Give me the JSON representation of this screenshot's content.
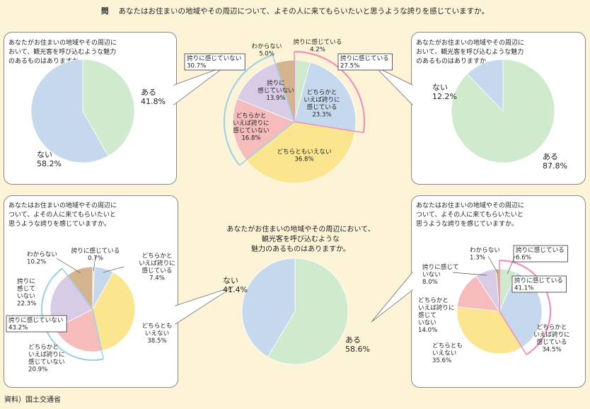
{
  "question": {
    "mark": "問",
    "text": "あなたはお住まいの地域やその周辺について、よその人に来てもらいたいと思うような誇りを感じていますか。"
  },
  "panels": {
    "top_left": {
      "text": "あなたがお住まいの地域やその周辺に\nおいて、観光客を呼び込むような魅力\nのあるものはありますか。"
    },
    "top_right": {
      "text": "あなたがお住まいの地域やその周辺に\nおいて、観光客を呼び込むような魅力\nのあるものはありますか。"
    },
    "bottom_left": {
      "text": "あなたはお住まいの地域やその周辺に\nついて、よその人に来てもらいたいと\n思うような誇りを感じていますか。"
    },
    "bottom_right": {
      "text": "あなたはお住まいの地域やその周辺に\nついて、よその人に来てもらいたいと\n思うような誇りを感じていますか。"
    },
    "bottom_center": {
      "text": "あなたがお住まいの地域やその周辺において、\n観光客を呼び込むような\n魅力のあるものはありますか。"
    }
  },
  "source": "資料）国土交通省",
  "colors": {
    "hokori": "#cfeacc",
    "dochira_kanjiru": "#c6d8ee",
    "dochira_mo": "#fbe58f",
    "dochira_kanjinai": "#f6bcbc",
    "kanjinai": "#d8cbe6",
    "wakaranai": "#d4b48e",
    "aru": "#cfeacc",
    "nai": "#c6d8ee",
    "pink_arc": "#ef8fba",
    "blue_arc": "#9fd3e6"
  },
  "chart_data": [
    {
      "type": "pie",
      "title": "あなたはお住まいの地域やその周辺について、よその人に来てもらいたいと思うような誇りを感じていますか。",
      "categories": [
        "誇りに感じている",
        "どちらかといえば誇りに感じている",
        "どちらともいえない",
        "どちらかといえば誇りに感じていない",
        "誇りに感じていない",
        "わからない"
      ],
      "values": [
        4.2,
        23.3,
        36.8,
        16.8,
        13.9,
        5.0
      ],
      "groups": [
        {
          "label": "誇りに感じている",
          "value": "27.5%"
        },
        {
          "label": "誇りに感じていない",
          "value": "30.7%"
        }
      ]
    },
    {
      "type": "pie",
      "title": "あなたがお住まいの地域やその周辺において、観光客を呼び込むような魅力のあるものはありますか。",
      "categories": [
        "ある",
        "ない"
      ],
      "values": [
        41.8,
        58.2
      ]
    },
    {
      "type": "pie",
      "title": "あなたがお住まいの地域やその周辺において、観光客を呼び込むような魅力のあるものはありますか。",
      "categories": [
        "ある",
        "ない"
      ],
      "values": [
        87.8,
        12.2
      ]
    },
    {
      "type": "pie",
      "title": "あなたはお住まいの地域やその周辺について、よその人に来てもらいたいと思うような誇りを感じていますか。",
      "categories": [
        "誇りに感じている",
        "どちらかといえば誇りに感じている",
        "どちらともいえない",
        "どちらかといえば誇りに感じていない",
        "誇りに感じていない",
        "わからない"
      ],
      "values": [
        0.7,
        7.4,
        38.5,
        20.9,
        22.3,
        10.2
      ],
      "groups": [
        {
          "label": "誇りに感じていない",
          "value": "43.2%"
        }
      ]
    },
    {
      "type": "pie",
      "title": "あなたがお住まいの地域やその周辺において、観光客を呼び込むような魅力のあるものはありますか。",
      "categories": [
        "ある",
        "ない"
      ],
      "values": [
        58.6,
        41.4
      ]
    },
    {
      "type": "pie",
      "title": "あなたはお住まいの地域やその周辺について、よその人に来てもらいたいと思うような誇りを感じていますか。",
      "categories": [
        "誇りに感じている",
        "どちらかといえば誇りに感じている",
        "どちらともいえない",
        "どちらかといえば誇りに感じていない",
        "誇りに感じていない",
        "わからない"
      ],
      "values": [
        6.6,
        34.5,
        35.6,
        14.0,
        8.0,
        1.3
      ],
      "groups": [
        {
          "label": "誇りに感じている",
          "value": "41.1%"
        }
      ]
    }
  ],
  "labels": {
    "p1": [
      [
        "わからない",
        "5.0%"
      ],
      [
        "誇りに感じている",
        "4.2%"
      ],
      [
        "どちらかと",
        "いえば誇りに",
        "感じている",
        "23.3%"
      ],
      [
        "どちらともいえない",
        "36.8%"
      ],
      [
        "どちらかと",
        "いえば誇りに",
        "感じていない",
        "16.8%"
      ],
      [
        "誇りに",
        "感じていない",
        "13.9%"
      ]
    ],
    "p1_groups": [
      [
        "誇りに感じている",
        "27.5%"
      ],
      [
        "誇りに感じていない",
        "30.7%"
      ]
    ],
    "p2": [
      [
        "ある",
        "41.8%"
      ],
      [
        "ない",
        "58.2%"
      ]
    ],
    "p3": [
      [
        "ある",
        "87.8%"
      ],
      [
        "ない",
        "12.2%"
      ]
    ],
    "p4": [
      [
        "誇りに感じている",
        "0.7%"
      ],
      [
        "どちらかと",
        "いえば誇りに",
        "感じている",
        "7.4%"
      ],
      [
        "どちらとも",
        "いえない",
        "38.5%"
      ],
      [
        "どちらかと",
        "いえば誇りに",
        "感じていない",
        "20.9%"
      ],
      [
        "誇りに",
        "感じて",
        "いない",
        "22.3%"
      ],
      [
        "わからない",
        "10.2%"
      ]
    ],
    "p4_groups": [
      [
        "誇りに感じていない",
        "43.2%"
      ]
    ],
    "p5": [
      [
        "ある",
        "58.6%"
      ],
      [
        "ない",
        "41.4%"
      ]
    ],
    "p6": [
      [
        "誇りに感じている",
        "6.6%"
      ],
      [
        "どちらかと",
        "いえば誇りに",
        "感じている",
        "34.5%"
      ],
      [
        "どちらとも",
        "いえない",
        "35.6%"
      ],
      [
        "どちらかと",
        "いえば誇りに",
        "感じて",
        "いない",
        "14.0%"
      ],
      [
        "誇りに感じて",
        "いない",
        "8.0%"
      ],
      [
        "わからない",
        "1.3%"
      ]
    ],
    "p6_groups": [
      [
        "誇りに感じている",
        "41.1%"
      ]
    ]
  }
}
